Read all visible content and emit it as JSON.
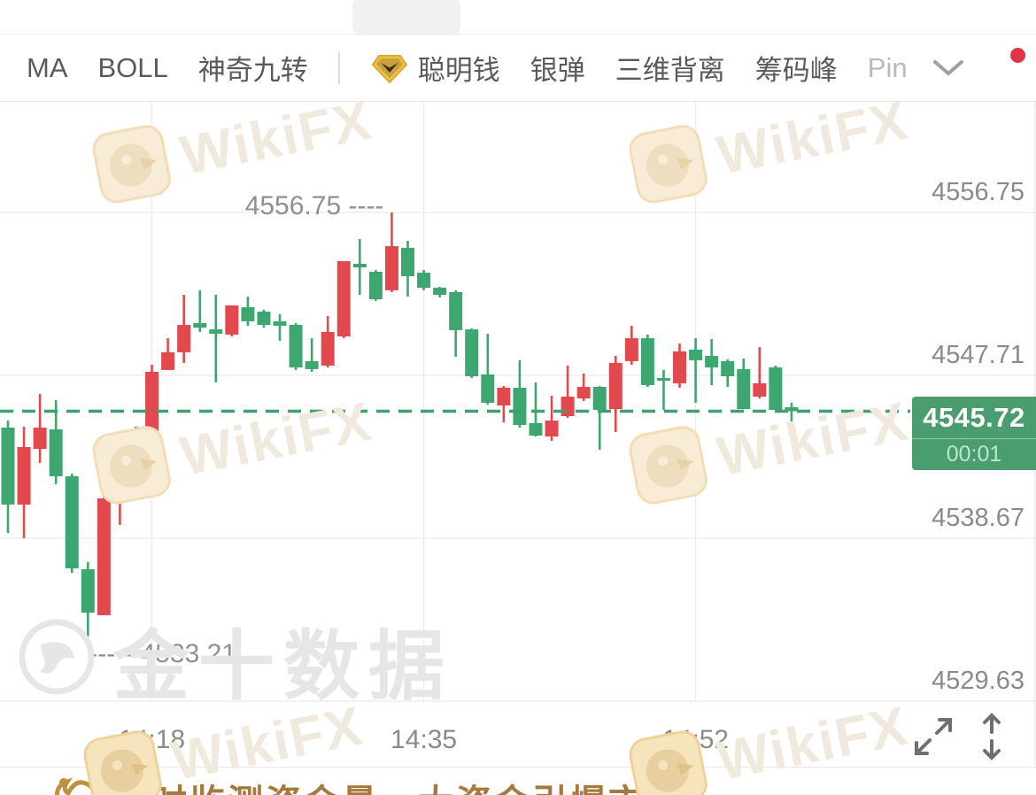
{
  "toolbar": {
    "indicators": [
      {
        "label": "MA"
      },
      {
        "label": "BOLL"
      },
      {
        "label": "神奇九转"
      }
    ],
    "premium": [
      {
        "label": "聪明钱"
      },
      {
        "label": "银弹"
      },
      {
        "label": "三维背离"
      },
      {
        "label": "筹码峰"
      },
      {
        "label": "Pin"
      }
    ]
  },
  "chart_data": {
    "type": "candlestick",
    "interval": "1-minute",
    "y_axis_labels": [
      "4556.75",
      "4547.71",
      "4538.67",
      "4529.63"
    ],
    "x_axis_labels": [
      {
        "candle_index": 9,
        "label": "14:18"
      },
      {
        "candle_index": 26,
        "label": "14:35"
      },
      {
        "candle_index": 43,
        "label": "14:52"
      }
    ],
    "current": {
      "price": "4545.72",
      "countdown": "00:01"
    },
    "annotations": {
      "high": {
        "label": "4556.75",
        "candle_index": 24
      },
      "low": {
        "label": "4533.21",
        "candle_index": 5
      }
    },
    "colors": {
      "up": "#E1494F",
      "down": "#3EA671",
      "current_line": "#3EA06C",
      "badge_bg": "#4A9D6F",
      "badge_countdown": "#BCE6CC",
      "grid": "#EDEDED",
      "axis_text": "#8A8A8A"
    },
    "candles": [
      [
        4544.81,
        4545.2,
        4538.96,
        4540.54
      ],
      [
        4540.54,
        4544.86,
        4538.67,
        4543.73
      ],
      [
        4543.63,
        4546.68,
        4542.85,
        4544.81
      ],
      [
        4544.71,
        4546.33,
        4541.67,
        4542.11
      ],
      [
        4542.11,
        4542.26,
        4536.75,
        4537.0
      ],
      [
        4536.95,
        4537.34,
        4533.21,
        4534.54
      ],
      [
        4534.4,
        4542.26,
        4534.4,
        4540.88
      ],
      [
        4540.93,
        4541.67,
        4539.41,
        4541.13
      ],
      [
        4541.03,
        4544.86,
        4540.78,
        4544.71
      ],
      [
        4544.37,
        4548.3,
        4544.12,
        4547.91
      ],
      [
        4548.01,
        4549.77,
        4548.01,
        4548.99
      ],
      [
        4548.99,
        4552.18,
        4548.4,
        4550.51
      ],
      [
        4550.61,
        4552.43,
        4550.12,
        4550.36
      ],
      [
        4550.26,
        4552.18,
        4547.32,
        4550.02
      ],
      [
        4549.97,
        4551.59,
        4549.87,
        4551.59
      ],
      [
        4551.49,
        4552.08,
        4550.46,
        4550.71
      ],
      [
        4551.25,
        4551.35,
        4550.36,
        4550.51
      ],
      [
        4550.71,
        4551.1,
        4549.63,
        4550.46
      ],
      [
        4550.51,
        4550.61,
        4548.01,
        4548.15
      ],
      [
        4548.5,
        4549.77,
        4547.91,
        4548.06
      ],
      [
        4548.25,
        4551.0,
        4548.15,
        4550.12
      ],
      [
        4549.87,
        4554.05,
        4549.77,
        4554.05
      ],
      [
        4553.9,
        4555.28,
        4552.18,
        4553.7
      ],
      [
        4553.46,
        4553.56,
        4551.84,
        4551.93
      ],
      [
        4552.43,
        4556.75,
        4552.33,
        4554.88
      ],
      [
        4554.79,
        4555.18,
        4552.08,
        4553.21
      ],
      [
        4553.41,
        4553.56,
        4552.43,
        4552.57
      ],
      [
        4552.57,
        4552.62,
        4552.03,
        4552.18
      ],
      [
        4552.33,
        4552.43,
        4548.74,
        4550.22
      ],
      [
        4550.26,
        4550.31,
        4547.56,
        4547.66
      ],
      [
        4547.76,
        4550.02,
        4546.09,
        4546.19
      ],
      [
        4546.04,
        4547.12,
        4545.1,
        4547.02
      ],
      [
        4547.02,
        4548.55,
        4544.81,
        4544.96
      ],
      [
        4545.06,
        4547.32,
        4544.32,
        4544.37
      ],
      [
        4544.32,
        4546.58,
        4544.07,
        4545.2
      ],
      [
        4545.45,
        4548.25,
        4545.35,
        4546.53
      ],
      [
        4546.43,
        4547.81,
        4546.29,
        4547.07
      ],
      [
        4547.07,
        4547.12,
        4543.58,
        4545.79
      ],
      [
        4545.84,
        4548.79,
        4544.56,
        4548.4
      ],
      [
        4548.5,
        4550.46,
        4548.3,
        4549.77
      ],
      [
        4549.77,
        4549.97,
        4547.07,
        4547.17
      ],
      [
        4547.56,
        4548.01,
        4545.79,
        4547.42
      ],
      [
        4547.27,
        4549.48,
        4547.02,
        4549.04
      ],
      [
        4549.14,
        4549.77,
        4546.19,
        4548.55
      ],
      [
        4548.79,
        4549.72,
        4547.17,
        4548.15
      ],
      [
        4548.5,
        4548.6,
        4547.07,
        4547.66
      ],
      [
        4548.06,
        4548.64,
        4545.84,
        4545.84
      ],
      [
        4546.53,
        4549.28,
        4546.43,
        4547.27
      ],
      [
        4548.15,
        4548.25,
        4545.79,
        4545.79
      ],
      [
        4545.94,
        4546.19,
        4544.71,
        4545.72
      ]
    ]
  },
  "banner": {
    "text": "实时监测资金量，大资金引爆市场"
  },
  "watermarks": {
    "wikifx": "WikiFX",
    "jin10": "金十数据"
  }
}
